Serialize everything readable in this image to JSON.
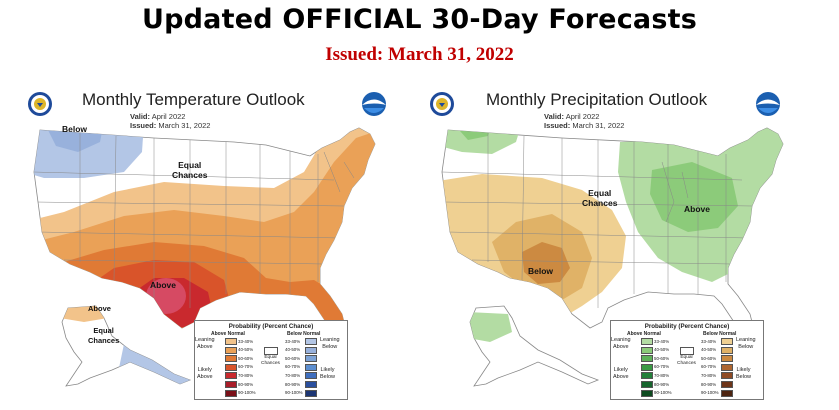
{
  "header": {
    "title": "Updated OFFICIAL 30-Day Forecasts",
    "issued": "Issued: March 31, 2022"
  },
  "temperature": {
    "title": "Monthly Temperature Outlook",
    "valid_label": "Valid:",
    "valid_value": "April 2022",
    "issued_label": "Issued:",
    "issued_value": "March 31, 2022",
    "labels": {
      "below": "Below",
      "equal": "Equal\nChances",
      "above": "Above",
      "alaska_above": "Above",
      "alaska_equal": "Equal\nChances"
    },
    "legend": {
      "title": "Probability (Percent Chance)",
      "col_above": "Above Normal",
      "col_below": "Below Normal",
      "above_ranges": [
        "33-40%",
        "40-50%",
        "50-60%",
        "60-70%",
        "70-80%",
        "80-90%",
        "90-100%"
      ],
      "below_ranges": [
        "33-40%",
        "40-50%",
        "50-60%",
        "60-70%",
        "70-80%",
        "80-90%",
        "90-100%"
      ],
      "above_colors": [
        "#f2c38a",
        "#eaa157",
        "#e07a35",
        "#d9542a",
        "#c9292e",
        "#a91d29",
        "#7a1018"
      ],
      "below_colors": [
        "#b3c6e6",
        "#98b1dc",
        "#7ea3d6",
        "#5d8fd0",
        "#3f6fbf",
        "#2a4f9e",
        "#1d3674"
      ],
      "leaning_above": "Leaning\nAbove",
      "likely_above": "Likely\nAbove",
      "leaning_below": "Leaning\nBelow",
      "likely_below": "Likely\nBelow",
      "equal_chances": "Equal\nChances"
    }
  },
  "precipitation": {
    "title": "Monthly Precipitation Outlook",
    "valid_label": "Valid:",
    "valid_value": "April 2022",
    "issued_label": "Issued:",
    "issued_value": "March 31, 2022",
    "labels": {
      "equal": "Equal\nChances",
      "above": "Above",
      "below": "Below"
    },
    "legend": {
      "title": "Probability (Percent Chance)",
      "col_above": "Above Normal",
      "col_below": "Below Normal",
      "above_ranges": [
        "33-40%",
        "40-50%",
        "50-60%",
        "60-70%",
        "70-80%",
        "80-90%",
        "90-100%"
      ],
      "below_ranges": [
        "33-40%",
        "40-50%",
        "50-60%",
        "60-70%",
        "70-80%",
        "80-90%",
        "90-100%"
      ],
      "above_colors": [
        "#b3dca3",
        "#8ccb7a",
        "#5fb25a",
        "#3a9a44",
        "#23803a",
        "#17652e",
        "#0d4a1f"
      ],
      "below_colors": [
        "#efd092",
        "#e0b267",
        "#cc8a41",
        "#ad6530",
        "#8e4a24",
        "#6d3519",
        "#4d2410"
      ],
      "leaning_above": "Leaning\nAbove",
      "likely_above": "Likely\nAbove",
      "leaning_below": "Leaning\nBelow",
      "likely_below": "Likely\nBelow",
      "equal_chances": "Equal\nChances"
    }
  },
  "colors": {
    "title": "#000000",
    "issued": "#c00000",
    "state_border": "#888888"
  },
  "icons": [
    "noaa-logo-icon",
    "nws-seal-icon"
  ]
}
